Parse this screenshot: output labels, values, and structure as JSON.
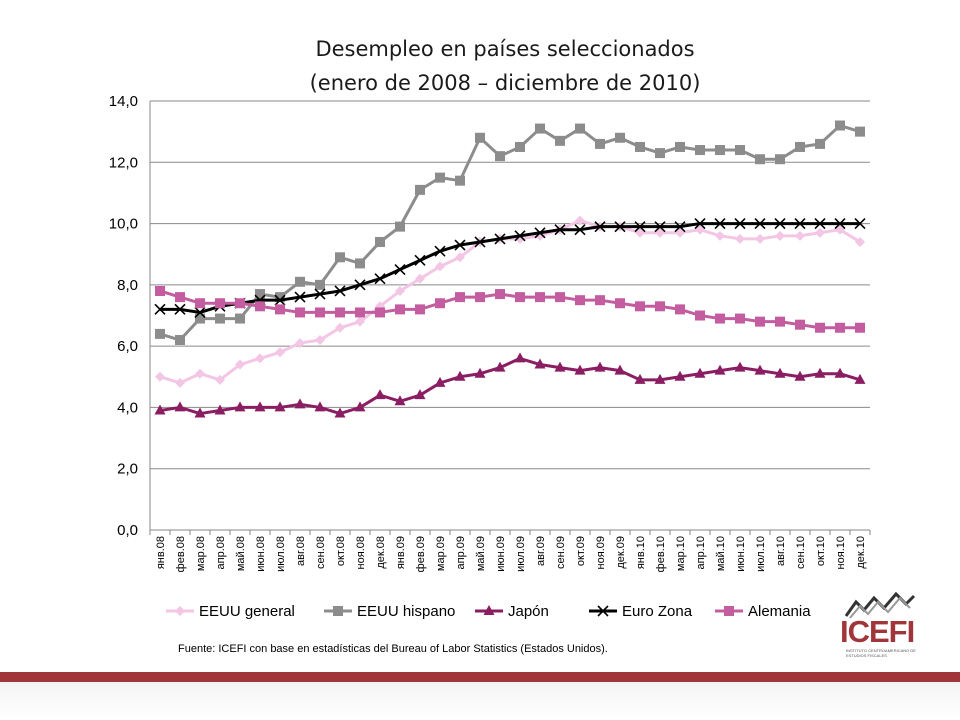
{
  "chart_data": {
    "type": "line",
    "title_line1": "Desempleo en países seleccionados",
    "title_line2": "(enero de 2008 – diciembre de 2010)",
    "ylim": [
      0,
      14
    ],
    "yticks": [
      "0,0",
      "2,0",
      "4,0",
      "6,0",
      "8,0",
      "10,0",
      "12,0",
      "14,0"
    ],
    "categories": [
      "янв.08",
      "фев.08",
      "мар.08",
      "апр.08",
      "май.08",
      "июн.08",
      "июл.08",
      "авг.08",
      "сен.08",
      "окт.08",
      "ноя.08",
      "дек.08",
      "янв.09",
      "фев.09",
      "мар.09",
      "апр.09",
      "май.09",
      "июн.09",
      "июл.09",
      "авг.09",
      "сен.09",
      "окт.09",
      "ноя.09",
      "дек.09",
      "янв.10",
      "фев.10",
      "мар.10",
      "апр.10",
      "май.10",
      "июн.10",
      "июл.10",
      "авг.10",
      "сен.10",
      "окт.10",
      "ноя.10",
      "дек.10"
    ],
    "xtick_labels": [
      "янв.08",
      "фев.08",
      "мар.08",
      "апр.08",
      "май.08",
      "июн.08",
      "июл.08",
      "авг.08",
      "сен.08",
      "окт.08",
      "ноя.08",
      "дек.08",
      "янв.09",
      "фев.09",
      "мар.09",
      "апр.09",
      "май.09",
      "июн.09",
      "июл.09",
      "авг.09",
      "сен.09",
      "окт.09",
      "ноя.09",
      "дек.09",
      "янв.10",
      "фев.10",
      "мар.10",
      "апр.10",
      "май.10",
      "июн.10",
      "июл.10",
      "авг.10",
      "сен.10",
      "окт.10",
      "ноя.10",
      "дек.10"
    ],
    "grid": true,
    "legend_position": "bottom",
    "series": [
      {
        "name": "EEUU general",
        "color": "#f2c6e4",
        "marker": "diamond",
        "values": [
          5.0,
          4.8,
          5.1,
          4.9,
          5.4,
          5.6,
          5.8,
          6.1,
          6.2,
          6.6,
          6.8,
          7.3,
          7.8,
          8.2,
          8.6,
          8.9,
          9.4,
          9.5,
          9.5,
          9.6,
          9.8,
          10.1,
          9.9,
          9.9,
          9.7,
          9.7,
          9.7,
          9.8,
          9.6,
          9.5,
          9.5,
          9.6,
          9.6,
          9.7,
          9.8,
          9.4
        ]
      },
      {
        "name": "EEUU hispano",
        "color": "#8c8c8c",
        "marker": "square",
        "values": [
          6.4,
          6.2,
          6.9,
          6.9,
          6.9,
          7.7,
          7.6,
          8.1,
          8.0,
          8.9,
          8.7,
          9.4,
          9.9,
          11.1,
          11.5,
          11.4,
          12.8,
          12.2,
          12.5,
          13.1,
          12.7,
          13.1,
          12.6,
          12.8,
          12.5,
          12.3,
          12.5,
          12.4,
          12.4,
          12.4,
          12.1,
          12.1,
          12.5,
          12.6,
          13.2,
          13.0
        ]
      },
      {
        "name": "Japón",
        "color": "#8b1e62",
        "marker": "triangle",
        "values": [
          3.9,
          4.0,
          3.8,
          3.9,
          4.0,
          4.0,
          4.0,
          4.1,
          4.0,
          3.8,
          4.0,
          4.4,
          4.2,
          4.4,
          4.8,
          5.0,
          5.1,
          5.3,
          5.6,
          5.4,
          5.3,
          5.2,
          5.3,
          5.2,
          4.9,
          4.9,
          5.0,
          5.1,
          5.2,
          5.3,
          5.2,
          5.1,
          5.0,
          5.1,
          5.1,
          4.9
        ]
      },
      {
        "name": "Euro Zona",
        "color": "#000000",
        "marker": "x",
        "values": [
          7.2,
          7.2,
          7.1,
          7.3,
          7.4,
          7.5,
          7.5,
          7.6,
          7.7,
          7.8,
          8.0,
          8.2,
          8.5,
          8.8,
          9.1,
          9.3,
          9.4,
          9.5,
          9.6,
          9.7,
          9.8,
          9.8,
          9.9,
          9.9,
          9.9,
          9.9,
          9.9,
          10.0,
          10.0,
          10.0,
          10.0,
          10.0,
          10.0,
          10.0,
          10.0,
          10.0
        ]
      },
      {
        "name": "Alemania",
        "color": "#c45da0",
        "marker": "square",
        "values": [
          7.8,
          7.6,
          7.4,
          7.4,
          7.4,
          7.3,
          7.2,
          7.1,
          7.1,
          7.1,
          7.1,
          7.1,
          7.2,
          7.2,
          7.4,
          7.6,
          7.6,
          7.7,
          7.6,
          7.6,
          7.6,
          7.5,
          7.5,
          7.4,
          7.3,
          7.3,
          7.2,
          7.0,
          6.9,
          6.9,
          6.8,
          6.8,
          6.7,
          6.6,
          6.6,
          6.6
        ]
      }
    ]
  },
  "source_note": "Fuente: ICEFI con base en estadísticas del Bureau of Labor Statistics (Estados Unidos).",
  "logo": {
    "text": "ICEFI",
    "subtitle": "INSTITUTO CENTROAMERICANO DE ESTUDIOS FISCALES",
    "color": "#a0353a"
  }
}
